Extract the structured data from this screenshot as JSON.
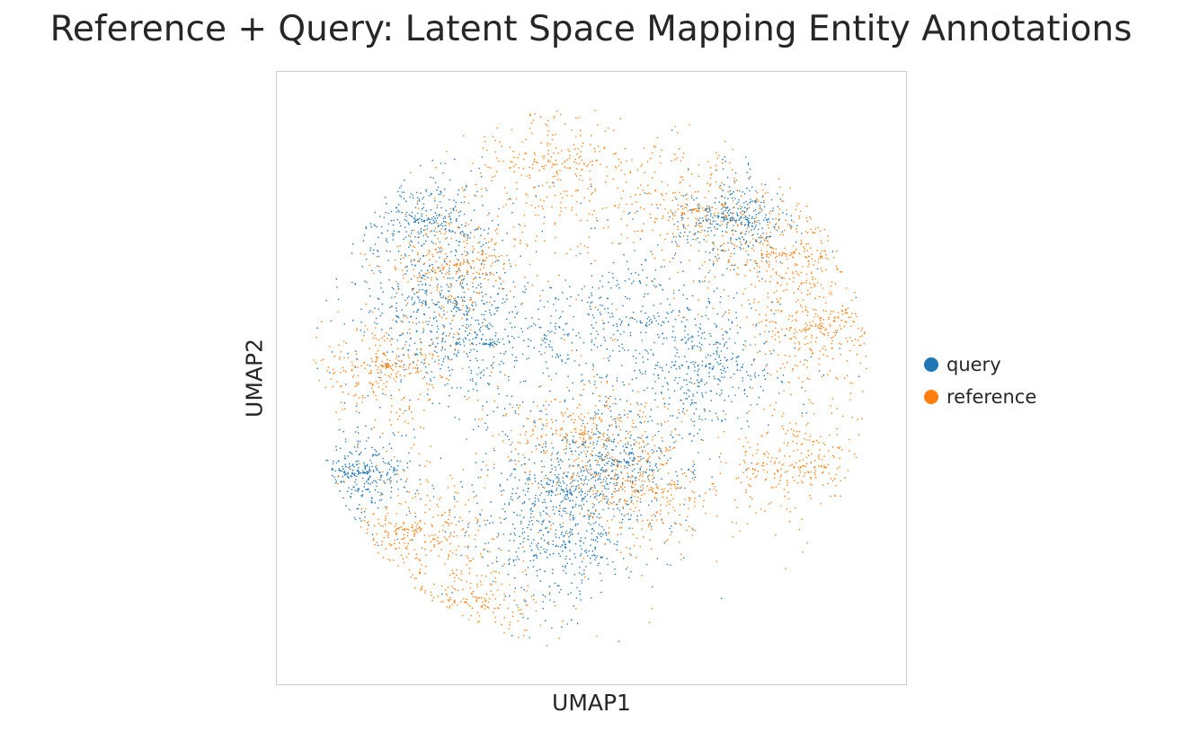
{
  "chart_data": {
    "type": "scatter",
    "title": "Reference + Query: Latent Space Mapping Entity Annotations",
    "xlabel": "UMAP1",
    "ylabel": "UMAP2",
    "xticks": [],
    "yticks": [],
    "xlim": [
      0,
      1
    ],
    "ylim": [
      0,
      1
    ],
    "grid": false,
    "legend_position": "right",
    "series": [
      {
        "name": "query",
        "color": "#1f77b4",
        "clusters": [
          {
            "x": 0.21,
            "y": 0.78,
            "spread": 0.05
          },
          {
            "x": 0.23,
            "y": 0.63,
            "spread": 0.06
          },
          {
            "x": 0.32,
            "y": 0.56,
            "spread": 0.07
          },
          {
            "x": 0.44,
            "y": 0.2,
            "spread": 0.06
          },
          {
            "x": 0.45,
            "y": 0.3,
            "spread": 0.05
          },
          {
            "x": 0.58,
            "y": 0.6,
            "spread": 0.07
          },
          {
            "x": 0.7,
            "y": 0.52,
            "spread": 0.06
          },
          {
            "x": 0.75,
            "y": 0.78,
            "spread": 0.04
          },
          {
            "x": 0.1,
            "y": 0.33,
            "spread": 0.04
          },
          {
            "x": 0.55,
            "y": 0.35,
            "spread": 0.05
          }
        ]
      },
      {
        "name": "reference",
        "color": "#ff7f0e",
        "clusters": [
          {
            "x": 0.44,
            "y": 0.88,
            "spread": 0.06
          },
          {
            "x": 0.68,
            "y": 0.8,
            "spread": 0.06
          },
          {
            "x": 0.84,
            "y": 0.72,
            "spread": 0.05
          },
          {
            "x": 0.89,
            "y": 0.59,
            "spread": 0.05
          },
          {
            "x": 0.86,
            "y": 0.34,
            "spread": 0.06
          },
          {
            "x": 0.18,
            "y": 0.23,
            "spread": 0.06
          },
          {
            "x": 0.28,
            "y": 0.1,
            "spread": 0.06
          },
          {
            "x": 0.14,
            "y": 0.52,
            "spread": 0.05
          },
          {
            "x": 0.26,
            "y": 0.7,
            "spread": 0.05
          },
          {
            "x": 0.48,
            "y": 0.4,
            "spread": 0.06
          },
          {
            "x": 0.6,
            "y": 0.3,
            "spread": 0.05
          }
        ]
      }
    ]
  }
}
